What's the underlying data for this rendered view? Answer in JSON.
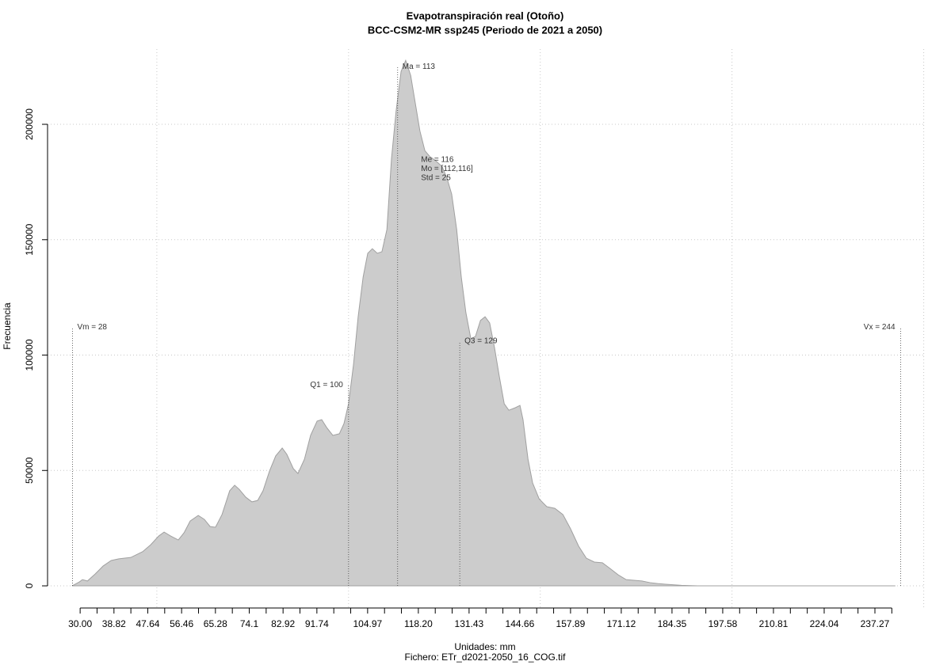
{
  "chart_data": {
    "type": "area",
    "title": "Evapotranspiración real (Otoño)",
    "subtitle": "BCC-CSM2-MR ssp245 (Periodo de 2021 a 2050)",
    "ylabel": "Frecuencia",
    "xlabel": "Unidades: mm",
    "caption": "Fichero: ETr_d2021-2050_16_COG.tif",
    "color": "#cccccc",
    "line_color": "#a0a0a0",
    "grid": true,
    "xlim": [
      21.5,
      250.5
    ],
    "ylim": [
      -9600,
      232600
    ],
    "yticks": [
      0,
      50000,
      100000,
      150000,
      200000
    ],
    "xticks": [
      {
        "value": 30,
        "label": "30.00"
      },
      38.82,
      47.64,
      56.46,
      65.28,
      74.1,
      82.92,
      91.74,
      104.97,
      {
        "value": 118.2,
        "label": "118.20"
      },
      131.43,
      144.66,
      157.89,
      171.12,
      184.35,
      197.58,
      210.81,
      224.04,
      237.27
    ],
    "xminor_ticks": [
      34.41,
      43.23,
      52.05,
      60.87,
      69.69,
      78.51,
      87.33,
      96.15,
      100.56,
      109.38,
      113.79,
      122.61,
      127.02,
      135.84,
      140.25,
      149.07,
      153.48,
      162.3,
      166.71,
      175.53,
      179.94,
      188.76,
      193.17,
      201.99,
      206.4,
      215.22,
      219.63,
      228.45,
      232.86,
      241.68
    ],
    "xgrid": [
      50,
      100,
      150,
      200,
      250
    ],
    "x": [
      27.9,
      29.8,
      30.6,
      31.9,
      33.9,
      36.0,
      38.1,
      40.1,
      43.2,
      46.3,
      48.4,
      50.5,
      51.9,
      53.6,
      55.6,
      57.1,
      58.7,
      60.8,
      62.4,
      63.9,
      65.3,
      67.0,
      69.0,
      70.3,
      71.5,
      73.2,
      74.8,
      76.3,
      77.7,
      79.4,
      81.0,
      82.7,
      83.9,
      85.6,
      86.8,
      88.5,
      90.1,
      91.8,
      93.0,
      94.3,
      95.9,
      97.6,
      98.8,
      100.0,
      101.3,
      102.5,
      103.8,
      105.0,
      106.2,
      107.5,
      108.7,
      110.0,
      111.2,
      112.4,
      113.7,
      114.9,
      116.2,
      117.4,
      118.6,
      119.9,
      121.1,
      122.8,
      124.4,
      125.7,
      126.9,
      128.2,
      129.4,
      130.6,
      131.9,
      133.1,
      134.4,
      135.6,
      136.8,
      138.1,
      139.3,
      140.6,
      141.8,
      143.5,
      144.7,
      145.5,
      146.8,
      148.0,
      149.7,
      151.7,
      153.8,
      155.9,
      157.9,
      160.0,
      162.0,
      164.1,
      166.2,
      168.2,
      170.3,
      172.4,
      174.4,
      176.5,
      178.6,
      180.6,
      182.7,
      186.8,
      191.0,
      215.7,
      242.6
    ],
    "values": [
      0,
      1700,
      2700,
      2100,
      5100,
      8600,
      11000,
      11700,
      12300,
      14800,
      17800,
      21600,
      23300,
      21600,
      19900,
      23000,
      28100,
      30500,
      28800,
      25700,
      25400,
      30900,
      41200,
      43600,
      41800,
      38400,
      36400,
      37000,
      41200,
      49800,
      56300,
      59700,
      57000,
      50800,
      48700,
      54900,
      65200,
      71400,
      72000,
      68600,
      65200,
      65900,
      70300,
      78900,
      96000,
      116600,
      133800,
      144100,
      146100,
      144100,
      144800,
      154400,
      185200,
      205800,
      222900,
      227700,
      221200,
      209200,
      197200,
      188600,
      186200,
      184100,
      181700,
      176500,
      169700,
      154400,
      133800,
      118400,
      107000,
      108100,
      115000,
      116600,
      113900,
      102900,
      90900,
      78900,
      76100,
      77200,
      78200,
      72000,
      54900,
      44600,
      37700,
      34300,
      33600,
      30900,
      24700,
      17200,
      12000,
      10300,
      10000,
      7500,
      4800,
      2700,
      2400,
      2100,
      1400,
      1000,
      700,
      200,
      0,
      0,
      0
    ],
    "markers": [
      {
        "text": "Vm = 28",
        "x": 28,
        "y": 112000,
        "side": "right"
      },
      {
        "text": "Q1 = 100",
        "x": 100,
        "y": 87000,
        "side": "left"
      },
      {
        "text": "Ma = 113",
        "x": 112.8,
        "y": 225000,
        "side": "right"
      },
      {
        "text": "Q3 = 129",
        "x": 129,
        "y": 106000,
        "side": "right"
      },
      {
        "text": "Vx = 244",
        "x": 244,
        "y": 112000,
        "side": "left"
      }
    ],
    "stats": {
      "lines": [
        "Me = 116",
        "Mo = [112,116]",
        "Std = 25"
      ],
      "x": 118.9,
      "y": 184600
    }
  }
}
